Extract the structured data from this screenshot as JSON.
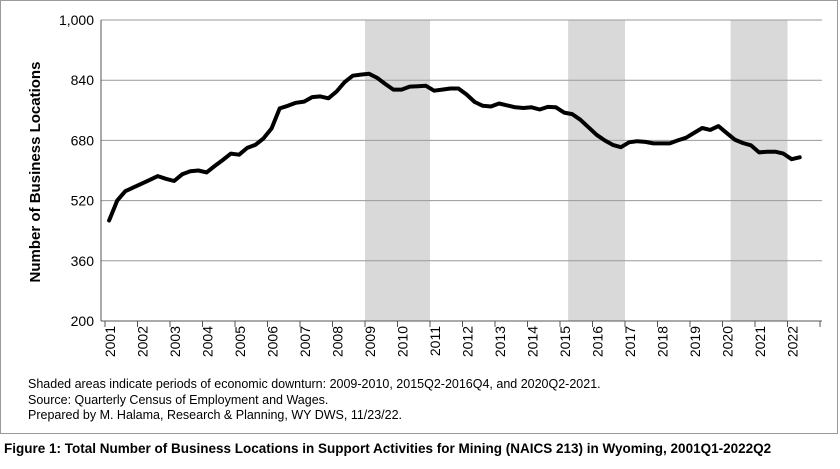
{
  "chart_data": {
    "type": "line",
    "title": "",
    "xlabel": "",
    "ylabel": "Number of Business Locations",
    "ylim": [
      200,
      1000
    ],
    "yticks": [
      "200",
      "360",
      "520",
      "680",
      "840",
      "1,000"
    ],
    "year_labels": [
      "2001",
      "2002",
      "2003",
      "2004",
      "2005",
      "2006",
      "2007",
      "2008",
      "2009",
      "2010",
      "2011",
      "2012",
      "2013",
      "2014",
      "2015",
      "2016",
      "2017",
      "2018",
      "2019",
      "2020",
      "2021",
      "2022"
    ],
    "grid": "horizontal",
    "legend": "none",
    "line_color": "#000000",
    "shade_color": "#d9d9d9",
    "recessions": [
      {
        "start": "2009Q1",
        "end": "2010Q4"
      },
      {
        "start": "2015Q2",
        "end": "2016Q4"
      },
      {
        "start": "2020Q2",
        "end": "2021Q4"
      }
    ],
    "series": [
      {
        "start": "2001Q1",
        "values": [
          467,
          520,
          545,
          555,
          565,
          575,
          585,
          578,
          572,
          590,
          598,
          600,
          595,
          612,
          628,
          645,
          642,
          660,
          668,
          685,
          712,
          765,
          772,
          780,
          783,
          795,
          797,
          792,
          810,
          835,
          852,
          855,
          857,
          846,
          830,
          815,
          815,
          823,
          824,
          825,
          812,
          815,
          818,
          818,
          802,
          782,
          772,
          770,
          778,
          773,
          768,
          766,
          768,
          762,
          769,
          768,
          754,
          750,
          735,
          715,
          695,
          680,
          668,
          662,
          675,
          678,
          676,
          672,
          672,
          672,
          680,
          687,
          700,
          713,
          708,
          718,
          700,
          682,
          673,
          667,
          648,
          650,
          650,
          645,
          630,
          635
        ]
      }
    ]
  },
  "notes": [
    "Shaded areas indicate periods of economic downturn: 2009-2010, 2015Q2-2016Q4, and 2020Q2-2021.",
    "Source: Quarterly Census of Employment and Wages.",
    "Prepared by M. Halama, Research & Planning, WY DWS, 11/23/22."
  ],
  "caption": "Figure 1: Total Number of Business Locations in Support Activities for Mining (NAICS 213) in Wyoming, 2001Q1-2022Q2"
}
